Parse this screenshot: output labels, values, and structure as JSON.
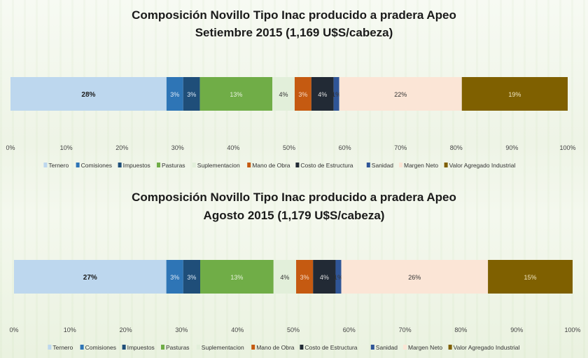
{
  "chart_data": [
    {
      "type": "bar",
      "orientation": "horizontal",
      "stacked": "100%",
      "title": "Composición Novillo Tipo Inac producido a pradera Apeo",
      "subtitle": "Setiembre 2015 (1,169 U$S/cabeza)",
      "xlim": [
        0,
        100
      ],
      "x_ticks": [
        "0%",
        "10%",
        "20%",
        "30%",
        "40%",
        "50%",
        "60%",
        "70%",
        "80%",
        "90%",
        "100%"
      ],
      "grid": false,
      "legend_position": "bottom",
      "series": [
        {
          "name": "Ternero",
          "value": 28,
          "label": "28%",
          "color": "#bdd7ee",
          "label_color": "#1a1a1a"
        },
        {
          "name": "Comisiones",
          "value": 3,
          "label": "3%",
          "color": "#2e75b6",
          "label_color": "#dce8f5"
        },
        {
          "name": "Impuestos",
          "value": 3,
          "label": "3%",
          "color": "#1f4e79",
          "label_color": "#dce8f5"
        },
        {
          "name": "Pasturas",
          "value": 13,
          "label": "13%",
          "color": "#70ad47",
          "label_color": "#e8f3df"
        },
        {
          "name": "Suplementacion",
          "value": 4,
          "label": "4%",
          "color": "#e2efda",
          "label_color": "#333333"
        },
        {
          "name": "Mano de Obra",
          "value": 3,
          "label": "3%",
          "color": "#c55a11",
          "label_color": "#f8dcc8"
        },
        {
          "name": "Costo de Estructura",
          "value": 4,
          "label": "4%",
          "color": "#222a35",
          "label_color": "#e0e0e0"
        },
        {
          "name": "Sanidad",
          "value": 1,
          "label": "1%",
          "color": "#2f5597",
          "label_color": "#333333"
        },
        {
          "name": "Margen Neto",
          "value": 22,
          "label": "22%",
          "color": "#fbe5d6",
          "label_color": "#333333"
        },
        {
          "name": "Valor Agregado Industrial",
          "value": 19,
          "label": "19%",
          "color": "#7f6000",
          "label_color": "#f0e6c0"
        }
      ]
    },
    {
      "type": "bar",
      "orientation": "horizontal",
      "stacked": "100%",
      "title": "Composición Novillo Tipo Inac producido a pradera Apeo",
      "subtitle": "Agosto 2015 (1,179 U$S/cabeza)",
      "xlim": [
        0,
        100
      ],
      "x_ticks": [
        "0%",
        "10%",
        "20%",
        "30%",
        "40%",
        "50%",
        "60%",
        "70%",
        "80%",
        "90%",
        "100%"
      ],
      "grid": false,
      "legend_position": "bottom",
      "series": [
        {
          "name": "Ternero",
          "value": 27,
          "label": "27%",
          "color": "#bdd7ee",
          "label_color": "#1a1a1a"
        },
        {
          "name": "Comisiones",
          "value": 3,
          "label": "3%",
          "color": "#2e75b6",
          "label_color": "#dce8f5"
        },
        {
          "name": "Impuestos",
          "value": 3,
          "label": "3%",
          "color": "#1f4e79",
          "label_color": "#dce8f5"
        },
        {
          "name": "Pasturas",
          "value": 13,
          "label": "13%",
          "color": "#70ad47",
          "label_color": "#e8f3df"
        },
        {
          "name": "Suplementacion",
          "value": 4,
          "label": "4%",
          "color": "#e2efda",
          "label_color": "#333333"
        },
        {
          "name": "Mano de Obra",
          "value": 3,
          "label": "3%",
          "color": "#c55a11",
          "label_color": "#f8dcc8"
        },
        {
          "name": "Costo de Estructura",
          "value": 4,
          "label": "4%",
          "color": "#222a35",
          "label_color": "#e0e0e0"
        },
        {
          "name": "Sanidad",
          "value": 1,
          "label": "1%",
          "color": "#2f5597",
          "label_color": "#333333"
        },
        {
          "name": "Margen Neto",
          "value": 26,
          "label": "26%",
          "color": "#fbe5d6",
          "label_color": "#333333"
        },
        {
          "name": "Valor Agregado Industrial",
          "value": 15,
          "label": "15%",
          "color": "#7f6000",
          "label_color": "#f0e6c0"
        }
      ]
    }
  ]
}
